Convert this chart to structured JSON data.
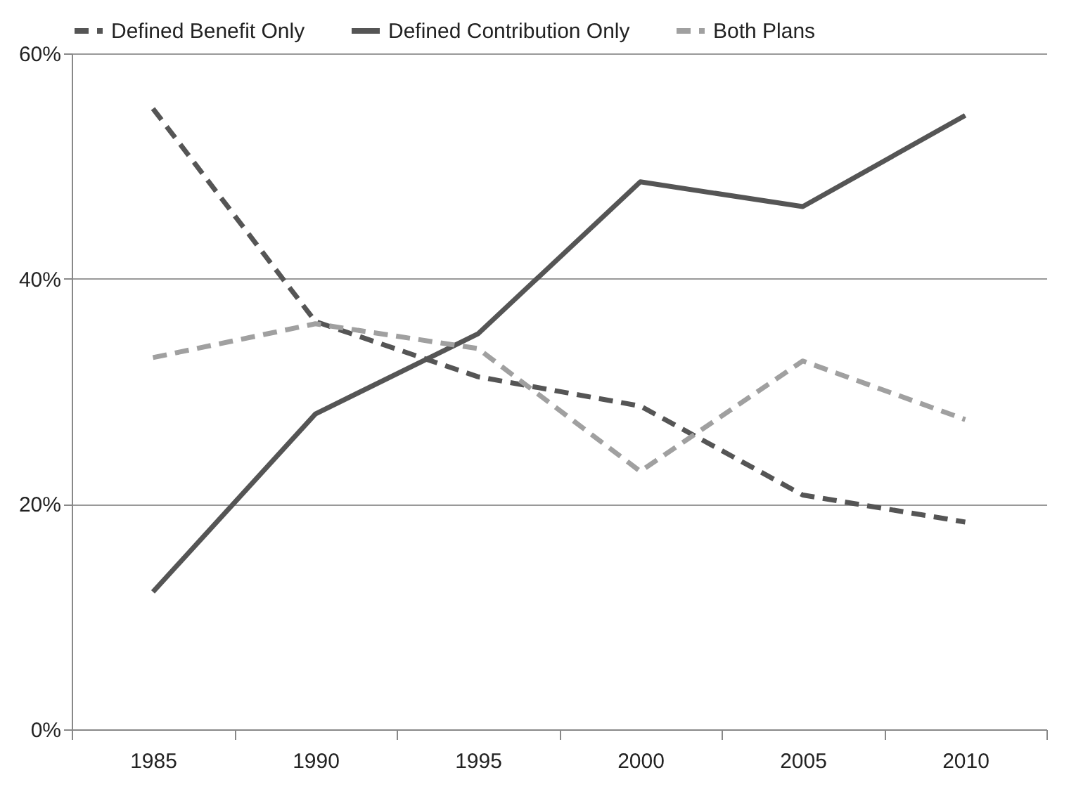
{
  "chart_data": {
    "type": "line",
    "categories": [
      "1985",
      "1990",
      "1995",
      "2000",
      "2005",
      "2010"
    ],
    "series": [
      {
        "name": "Defined Benefit Only",
        "color": "#555555",
        "line_style": "dashed",
        "values": [
          55.1,
          36.2,
          31.3,
          28.7,
          20.8,
          18.4
        ]
      },
      {
        "name": "Defined Contribution Only",
        "color": "#555555",
        "line_style": "solid",
        "values": [
          12.2,
          28,
          35.1,
          48.6,
          46.4,
          54.5
        ]
      },
      {
        "name": "Both Plans",
        "color": "#a0a0a0",
        "line_style": "dashed",
        "values": [
          33,
          36,
          33.8,
          22.9,
          32.7,
          27.5
        ]
      }
    ],
    "ylim": [
      0,
      60
    ],
    "yticks": [
      {
        "value": 0,
        "label": "0%"
      },
      {
        "value": 20,
        "label": "20%"
      },
      {
        "value": 40,
        "label": "40%"
      },
      {
        "value": 60,
        "label": "60%"
      }
    ],
    "grid": "y",
    "legend": "top",
    "marker": "none"
  }
}
